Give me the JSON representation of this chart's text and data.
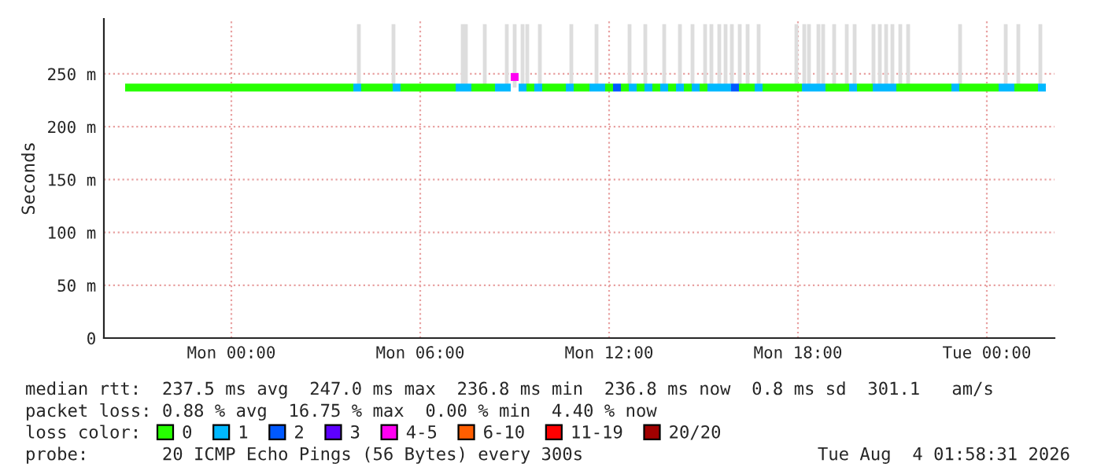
{
  "chart_data": {
    "type": "scatter",
    "marker": "square",
    "ylabel": "Seconds",
    "legend_title": "loss color:",
    "xlim": [
      "2026-08-02T19:57",
      "2026-08-04T02:09"
    ],
    "xticks": [
      {
        "value": "2026-08-03T00:00",
        "label": "Mon 00:00"
      },
      {
        "value": "2026-08-03T06:00",
        "label": "Mon 06:00"
      },
      {
        "value": "2026-08-03T12:00",
        "label": "Mon 12:00"
      },
      {
        "value": "2026-08-03T18:00",
        "label": "Mon 18:00"
      },
      {
        "value": "2026-08-04T00:00",
        "label": "Tue 00:00"
      }
    ],
    "ylim": [
      0,
      302
    ],
    "yticks": [
      0,
      {
        "value": 50,
        "label": "50 m"
      },
      {
        "value": 100,
        "label": "100 m"
      },
      {
        "value": 150,
        "label": "150 m"
      },
      {
        "value": 200,
        "label": "200 m"
      },
      {
        "value": 250,
        "label": "250 m"
      }
    ],
    "grid": true,
    "legend": "bottom",
    "series": [
      {
        "type": "bar",
        "color": "#dddddd",
        "x": [
          "2026-08-03T04:03",
          "2026-08-03T05:09",
          "2026-08-03T07:21",
          "2026-08-03T07:27",
          "2026-08-03T08:03",
          "2026-08-03T08:45",
          "2026-08-03T09:00",
          "2026-08-03T09:15",
          "2026-08-03T09:24",
          "2026-08-03T09:48",
          "2026-08-03T10:48",
          "2026-08-03T11:36",
          "2026-08-03T12:39",
          "2026-08-03T13:09",
          "2026-08-03T13:45",
          "2026-08-03T14:15",
          "2026-08-03T14:39",
          "2026-08-03T15:03",
          "2026-08-03T15:15",
          "2026-08-03T15:30",
          "2026-08-03T15:42",
          "2026-08-03T15:54",
          "2026-08-03T16:09",
          "2026-08-03T16:24",
          "2026-08-03T16:45",
          "2026-08-03T17:57",
          "2026-08-03T18:12",
          "2026-08-03T18:21",
          "2026-08-03T18:39",
          "2026-08-03T18:48",
          "2026-08-03T19:09",
          "2026-08-03T19:33",
          "2026-08-03T19:48",
          "2026-08-03T20:24",
          "2026-08-03T20:36",
          "2026-08-03T20:48",
          "2026-08-03T21:00",
          "2026-08-03T21:15",
          "2026-08-03T21:30",
          "2026-08-03T23:09",
          "2026-08-04T00:36",
          "2026-08-04T01:00",
          "2026-08-04T01:42"
        ],
        "base": [
          237,
          237,
          237,
          237,
          237,
          237,
          237,
          237,
          237,
          237,
          237,
          237,
          237,
          237,
          237,
          237,
          237,
          237,
          237,
          237,
          237,
          237,
          237,
          237,
          237,
          237,
          237,
          237,
          237,
          237,
          237,
          237,
          237,
          237,
          237,
          237,
          237,
          237,
          237,
          237,
          237,
          237,
          237
        ],
        "values": [
          60,
          60,
          60,
          60,
          60,
          60,
          60,
          60,
          60,
          60,
          60,
          60,
          60,
          60,
          60,
          60,
          60,
          60,
          60,
          60,
          60,
          60,
          60,
          60,
          60,
          60,
          60,
          60,
          60,
          60,
          60,
          60,
          60,
          60,
          60,
          60,
          60,
          60,
          60,
          60,
          60,
          60,
          60
        ]
      },
      {
        "name": "0",
        "color": "#26ff00",
        "x": [
          "2026-08-02T20:45",
          "2026-08-02T21:00",
          "2026-08-02T21:15",
          "2026-08-02T21:30",
          "2026-08-02T21:45",
          "2026-08-02T22:00",
          "2026-08-02T22:15",
          "2026-08-02T22:30",
          "2026-08-02T22:45",
          "2026-08-02T23:00",
          "2026-08-02T23:15",
          "2026-08-02T23:30",
          "2026-08-02T23:45",
          "2026-08-03T00:00",
          "2026-08-03T00:15",
          "2026-08-03T00:30",
          "2026-08-03T00:45",
          "2026-08-03T01:00",
          "2026-08-03T01:15",
          "2026-08-03T01:30",
          "2026-08-03T01:45",
          "2026-08-03T02:00",
          "2026-08-03T02:15",
          "2026-08-03T02:30",
          "2026-08-03T02:45",
          "2026-08-03T03:00",
          "2026-08-03T03:15",
          "2026-08-03T03:30",
          "2026-08-03T03:45",
          "2026-08-03T04:15",
          "2026-08-03T04:30",
          "2026-08-03T04:45",
          "2026-08-03T05:00",
          "2026-08-03T05:30",
          "2026-08-03T05:45",
          "2026-08-03T06:00",
          "2026-08-03T06:15",
          "2026-08-03T06:30",
          "2026-08-03T06:45",
          "2026-08-03T07:00",
          "2026-08-03T07:45",
          "2026-08-03T08:00",
          "2026-08-03T08:15",
          "2026-08-03T09:30",
          "2026-08-03T10:00",
          "2026-08-03T10:15",
          "2026-08-03T10:30",
          "2026-08-03T11:00",
          "2026-08-03T11:15",
          "2026-08-03T12:00",
          "2026-08-03T12:30",
          "2026-08-03T13:00",
          "2026-08-03T13:30",
          "2026-08-03T14:00",
          "2026-08-03T14:30",
          "2026-08-03T15:00",
          "2026-08-03T16:15",
          "2026-08-03T16:30",
          "2026-08-03T17:00",
          "2026-08-03T17:15",
          "2026-08-03T17:30",
          "2026-08-03T17:45",
          "2026-08-03T18:00",
          "2026-08-03T19:00",
          "2026-08-03T19:15",
          "2026-08-03T19:30",
          "2026-08-03T20:00",
          "2026-08-03T20:15",
          "2026-08-03T21:15",
          "2026-08-03T21:30",
          "2026-08-03T21:45",
          "2026-08-03T22:00",
          "2026-08-03T22:15",
          "2026-08-03T22:30",
          "2026-08-03T22:45",
          "2026-08-03T23:15",
          "2026-08-03T23:30",
          "2026-08-03T23:45",
          "2026-08-04T00:00",
          "2026-08-04T00:15",
          "2026-08-04T01:00",
          "2026-08-04T01:15",
          "2026-08-04T01:30"
        ],
        "values": [
          237,
          237,
          237,
          237,
          237,
          237,
          237,
          237,
          237,
          237,
          237,
          237,
          237,
          237,
          237,
          237,
          237,
          237,
          237,
          237,
          237,
          237,
          237,
          237,
          237,
          237,
          237,
          237,
          237,
          237,
          237,
          237,
          237,
          237,
          237,
          237,
          237,
          237,
          237,
          237,
          237,
          237,
          237,
          237,
          237,
          237,
          237,
          237,
          237,
          237,
          237,
          237,
          237,
          237,
          237,
          237,
          237,
          237,
          237,
          237,
          237,
          237,
          237,
          237,
          237,
          237,
          237,
          237,
          237,
          237,
          237,
          237,
          237,
          237,
          237,
          237,
          237,
          237,
          237,
          237,
          237,
          237,
          237
        ]
      },
      {
        "name": "1",
        "color": "#00b8ff",
        "x": [
          "2026-08-03T04:00",
          "2026-08-03T05:15",
          "2026-08-03T07:15",
          "2026-08-03T07:30",
          "2026-08-03T08:30",
          "2026-08-03T08:45",
          "2026-08-03T09:15",
          "2026-08-03T09:45",
          "2026-08-03T10:45",
          "2026-08-03T11:30",
          "2026-08-03T11:45",
          "2026-08-03T12:45",
          "2026-08-03T13:15",
          "2026-08-03T13:45",
          "2026-08-03T14:15",
          "2026-08-03T14:45",
          "2026-08-03T15:15",
          "2026-08-03T15:30",
          "2026-08-03T15:45",
          "2026-08-03T16:45",
          "2026-08-03T18:15",
          "2026-08-03T18:30",
          "2026-08-03T18:45",
          "2026-08-03T19:45",
          "2026-08-03T20:30",
          "2026-08-03T20:45",
          "2026-08-03T21:00",
          "2026-08-03T23:00",
          "2026-08-04T00:30",
          "2026-08-04T00:45",
          "2026-08-04T01:45"
        ],
        "values": [
          237,
          237,
          237,
          237,
          237,
          237,
          237,
          237,
          237,
          237,
          237,
          237,
          237,
          237,
          237,
          237,
          237,
          237,
          237,
          237,
          237,
          237,
          237,
          237,
          237,
          237,
          237,
          237,
          237,
          237,
          237
        ]
      },
      {
        "name": "2",
        "color": "#0059ff",
        "x": [
          "2026-08-03T12:15",
          "2026-08-03T16:00"
        ],
        "values": [
          237,
          237
        ]
      },
      {
        "name": "3",
        "color": "#5e00ff"
      },
      {
        "name": "4-5",
        "color": "#ff00f2",
        "x": [
          "2026-08-03T09:00"
        ],
        "values": [
          247
        ]
      },
      {
        "name": "6-10",
        "color": "#ff5e00"
      },
      {
        "name": "11-19",
        "color": "#ff0000"
      },
      {
        "name": "20/20",
        "color": "#a10000"
      }
    ],
    "annotations": [
      "median rtt:  237.5 ms avg  247.0 ms max  236.8 ms min  236.8 ms now  0.8 ms sd  301.1   am/s",
      "packet loss: 0.88 % avg  16.75 % max  0.00 % min  4.40 % now",
      "probe:       20 ICMP Echo Pings (56 Bytes) every 300s",
      "Tue Aug  4 01:58:31 2026"
    ]
  }
}
